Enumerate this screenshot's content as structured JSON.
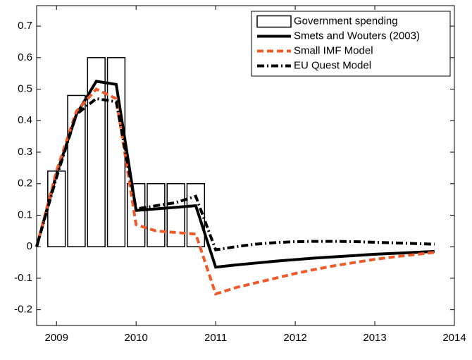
{
  "chart_data": {
    "type": "mixed",
    "xlim": [
      2008.75,
      2014
    ],
    "xticks": [
      2009,
      2010,
      2011,
      2012,
      2013,
      2014
    ],
    "ylim": [
      -0.25,
      0.765
    ],
    "yticks": [
      -0.2,
      -0.1,
      0,
      0.1,
      0.2,
      0.3,
      0.4,
      0.5,
      0.6,
      0.7
    ],
    "legend": "top-right",
    "series": [
      {
        "name": "Government spending",
        "kind": "bar",
        "color": "#000000",
        "x": [
          2009,
          2009.25,
          2009.5,
          2009.75,
          2010,
          2010.25,
          2010.5,
          2010.75
        ],
        "values": [
          0.24,
          0.48,
          0.6,
          0.6,
          0.2,
          0.2,
          0.2,
          0.2
        ]
      },
      {
        "name": "Smets and Wouters (2003)",
        "kind": "line",
        "dash": "solid",
        "color": "#000000",
        "x": [
          2008.75,
          2009,
          2009.25,
          2009.5,
          2009.75,
          2010,
          2010.25,
          2010.5,
          2010.75,
          2011,
          2011.25,
          2011.5,
          2011.75,
          2012,
          2012.25,
          2012.5,
          2012.75,
          2013,
          2013.25,
          2013.5,
          2013.75
        ],
        "values": [
          0,
          0.23,
          0.42,
          0.525,
          0.515,
          0.115,
          0.12,
          0.125,
          0.13,
          -0.065,
          -0.058,
          -0.052,
          -0.046,
          -0.041,
          -0.036,
          -0.032,
          -0.028,
          -0.024,
          -0.021,
          -0.018,
          -0.015
        ]
      },
      {
        "name": "Small IMF Model",
        "kind": "line",
        "dash": "dashed",
        "color": "#f05a28",
        "x": [
          2008.75,
          2009,
          2009.25,
          2009.5,
          2009.75,
          2010,
          2010.25,
          2010.5,
          2010.75,
          2011,
          2011.25,
          2011.5,
          2011.75,
          2012,
          2012.25,
          2012.5,
          2012.75,
          2013,
          2013.25,
          2013.5,
          2013.75
        ],
        "values": [
          0,
          0.24,
          0.43,
          0.5,
          0.47,
          0.07,
          0.05,
          0.045,
          0.04,
          -0.15,
          -0.13,
          -0.115,
          -0.1,
          -0.085,
          -0.072,
          -0.06,
          -0.05,
          -0.04,
          -0.032,
          -0.025,
          -0.018
        ]
      },
      {
        "name": "EU Quest Model",
        "kind": "line",
        "dash": "dashdot",
        "color": "#000000",
        "x": [
          2008.75,
          2009,
          2009.25,
          2009.5,
          2009.75,
          2010,
          2010.25,
          2010.5,
          2010.75,
          2011,
          2011.25,
          2011.5,
          2011.75,
          2012,
          2012.25,
          2012.5,
          2012.75,
          2013,
          2013.25,
          2013.5,
          2013.75
        ],
        "values": [
          0,
          0.22,
          0.42,
          0.47,
          0.46,
          0.12,
          0.13,
          0.14,
          0.16,
          -0.01,
          0,
          0.008,
          0.013,
          0.016,
          0.017,
          0.017,
          0.016,
          0.014,
          0.012,
          0.01,
          0.008
        ]
      }
    ]
  }
}
